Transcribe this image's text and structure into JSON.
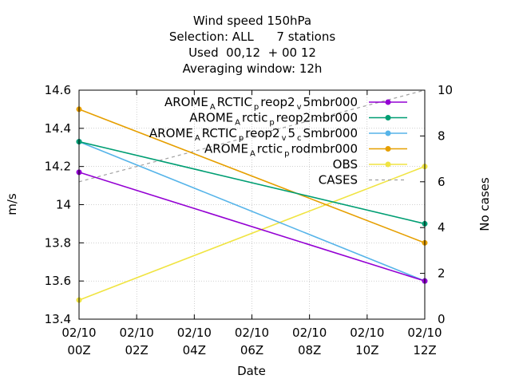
{
  "chart_data": {
    "type": "line",
    "title_lines": [
      "Wind speed 150hPa",
      "Selection: ALL      7 stations",
      "Used  00,12  + 00 12",
      "Averaging window: 12h"
    ],
    "xlabel": "Date",
    "ylabel": "m/s",
    "y2label": "No cases",
    "x_ticks": [
      {
        "line1": "02/10",
        "line2": "00Z"
      },
      {
        "line1": "02/10",
        "line2": "02Z"
      },
      {
        "line1": "02/10",
        "line2": "04Z"
      },
      {
        "line1": "02/10",
        "line2": "06Z"
      },
      {
        "line1": "02/10",
        "line2": "08Z"
      },
      {
        "line1": "02/10",
        "line2": "10Z"
      },
      {
        "line1": "02/10",
        "line2": "12Z"
      }
    ],
    "x_hours": [
      0,
      2,
      4,
      6,
      8,
      10,
      12
    ],
    "xlim": [
      0,
      12
    ],
    "ylim": [
      13.4,
      14.6
    ],
    "y_ticks": [
      "13.4",
      "13.6",
      "13.8",
      "14",
      "14.2",
      "14.4",
      "14.6"
    ],
    "y2lim": [
      0,
      10
    ],
    "y2_ticks": [
      "0",
      "2",
      "4",
      "6",
      "8",
      "10"
    ],
    "series": [
      {
        "name": "AROME_ARCTIC_preop2_v5mbr000",
        "legend_parts": [
          "AROME",
          "A",
          "RCTIC",
          "p",
          "reop2",
          "v",
          "5mbr000"
        ],
        "color": "#9400d3",
        "axis": "y1",
        "x": [
          0,
          12
        ],
        "y": [
          14.17,
          13.6
        ]
      },
      {
        "name": "AROME_Arctic_preop2mbr000",
        "legend_parts": [
          "AROME",
          "A",
          "rctic",
          "p",
          "reop2mbr000"
        ],
        "color": "#009e73",
        "axis": "y1",
        "x": [
          0,
          12
        ],
        "y": [
          14.33,
          13.9
        ]
      },
      {
        "name": "AROME_ARCTIC_preop2_v5_cSmbr000",
        "legend_parts": [
          "AROME",
          "A",
          "RCTIC",
          "p",
          "reop2",
          "v",
          "5",
          "c",
          "Smbr000"
        ],
        "color": "#56b4e9",
        "axis": "y1",
        "x": [
          0,
          12
        ],
        "y": [
          14.33,
          13.6
        ]
      },
      {
        "name": "AROME_Arctic_prodmbr000",
        "legend_parts": [
          "AROME",
          "A",
          "rctic",
          "p",
          "rodmbr000"
        ],
        "color": "#e69f00",
        "axis": "y1",
        "x": [
          0,
          12
        ],
        "y": [
          14.5,
          13.8
        ]
      },
      {
        "name": "OBS",
        "legend_parts": [
          "OBS"
        ],
        "color": "#f0e442",
        "axis": "y1",
        "x": [
          0,
          12
        ],
        "y": [
          13.5,
          14.2
        ]
      },
      {
        "name": "CASES",
        "legend_parts": [
          "CASES"
        ],
        "color": "#a0a0a0",
        "axis": "y2",
        "dashed": true,
        "x": [
          0,
          12
        ],
        "y": [
          6,
          10
        ]
      }
    ],
    "grid": true,
    "legend_position": "top-right"
  }
}
